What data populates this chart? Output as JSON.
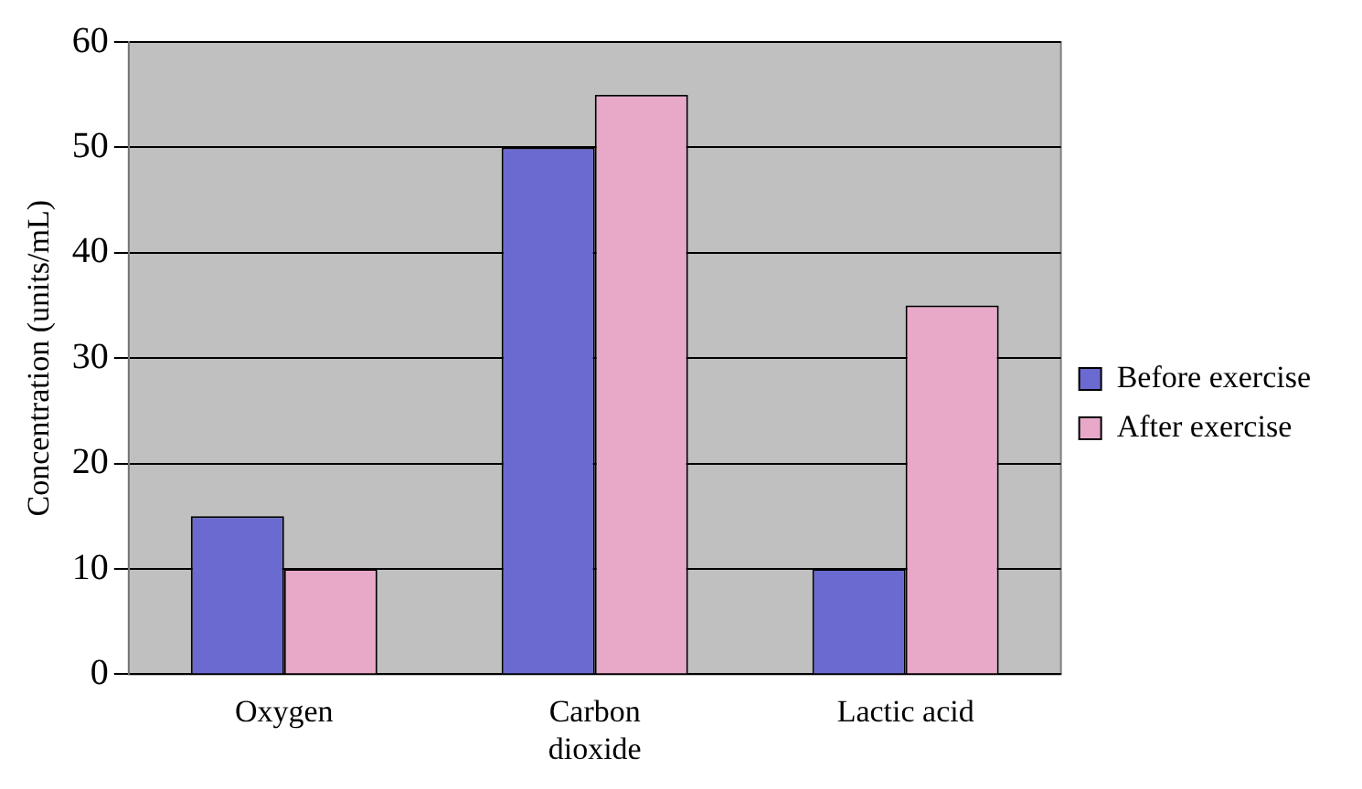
{
  "chart_data": {
    "type": "bar",
    "ylabel": "Concentration (units/mL)",
    "categories": [
      "Oxygen",
      "Carbon dioxide",
      "Lactic acid"
    ],
    "series": [
      {
        "name": "Before exercise",
        "color": "#6a6ad0",
        "values": [
          15,
          50,
          10
        ]
      },
      {
        "name": "After exercise",
        "color": "#e8a8c8",
        "values": [
          10,
          55,
          35
        ]
      }
    ],
    "ylim": [
      0,
      60
    ],
    "yticks": [
      0,
      10,
      20,
      30,
      40,
      50,
      60
    ],
    "grid": "y",
    "legend": "right"
  }
}
